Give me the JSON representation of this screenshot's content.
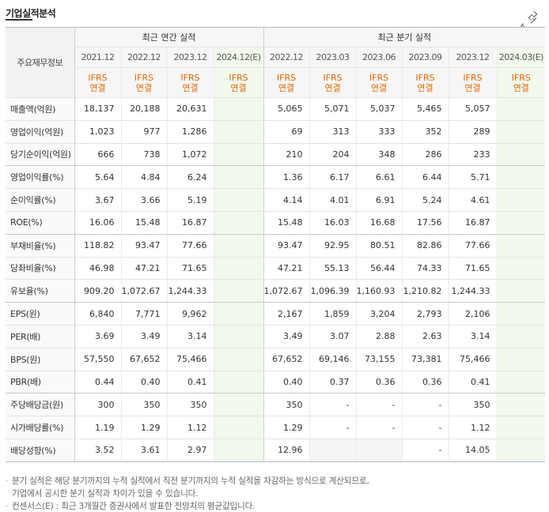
{
  "header": {
    "title": "기업실적분석",
    "more_label": "더보기"
  },
  "table": {
    "row_header_label": "주요재무정보",
    "annual_group_label": "최근 연간 실적",
    "quarter_group_label": "최근 분기 실적",
    "annual_periods": [
      "2021.12",
      "2022.12",
      "2023.12",
      "2024.12(E)"
    ],
    "quarter_periods": [
      "2022.12",
      "2023.03",
      "2023.06",
      "2023.09",
      "2023.12",
      "2024.03(E)"
    ],
    "basis_line1": "IFRS",
    "basis_line2": "연결",
    "rows": [
      {
        "label": "매출액(억원)",
        "annual": [
          "18,137",
          "20,188",
          "20,631",
          ""
        ],
        "quarter": [
          "5,065",
          "5,071",
          "5,037",
          "5,465",
          "5,057",
          ""
        ]
      },
      {
        "label": "영업이익(억원)",
        "annual": [
          "1,023",
          "977",
          "1,286",
          ""
        ],
        "quarter": [
          "69",
          "313",
          "333",
          "352",
          "289",
          ""
        ]
      },
      {
        "label": "당기순이익(억원)",
        "annual": [
          "666",
          "738",
          "1,072",
          ""
        ],
        "quarter": [
          "210",
          "204",
          "348",
          "286",
          "233",
          ""
        ]
      },
      {
        "label": "영업이익률(%)",
        "annual": [
          "5.64",
          "4.84",
          "6.24",
          ""
        ],
        "quarter": [
          "1.36",
          "6.17",
          "6.61",
          "6.44",
          "5.71",
          ""
        ]
      },
      {
        "label": "순이익률(%)",
        "annual": [
          "3.67",
          "3.66",
          "5.19",
          ""
        ],
        "quarter": [
          "4.14",
          "4.01",
          "6.91",
          "5.24",
          "4.61",
          ""
        ]
      },
      {
        "label": "ROE(%)",
        "annual": [
          "16.06",
          "15.48",
          "16.87",
          ""
        ],
        "quarter": [
          "15.48",
          "16.03",
          "16.68",
          "17.56",
          "16.87",
          ""
        ]
      },
      {
        "label": "부채비율(%)",
        "annual": [
          "118.82",
          "93.47",
          "77.66",
          ""
        ],
        "quarter": [
          "93.47",
          "92.95",
          "80.51",
          "82.86",
          "77.66",
          ""
        ]
      },
      {
        "label": "당좌비율(%)",
        "annual": [
          "46.98",
          "47.21",
          "71.65",
          ""
        ],
        "quarter": [
          "47.21",
          "55.13",
          "56.44",
          "74.33",
          "71.65",
          ""
        ]
      },
      {
        "label": "유보율(%)",
        "annual": [
          "909.20",
          "1,072.67",
          "1,244.33",
          ""
        ],
        "quarter": [
          "1,072.67",
          "1,096.39",
          "1,160.93",
          "1,210.82",
          "1,244.33",
          ""
        ]
      },
      {
        "label": "EPS(원)",
        "annual": [
          "6,840",
          "7,771",
          "9,962",
          ""
        ],
        "quarter": [
          "2,167",
          "1,859",
          "3,204",
          "2,793",
          "2,106",
          ""
        ]
      },
      {
        "label": "PER(배)",
        "annual": [
          "3.69",
          "3.49",
          "3.14",
          ""
        ],
        "quarter": [
          "3.49",
          "3.07",
          "2.88",
          "2.63",
          "3.14",
          ""
        ]
      },
      {
        "label": "BPS(원)",
        "annual": [
          "57,550",
          "67,652",
          "75,466",
          ""
        ],
        "quarter": [
          "67,652",
          "69,146",
          "73,155",
          "73,381",
          "75,466",
          ""
        ]
      },
      {
        "label": "PBR(배)",
        "annual": [
          "0.44",
          "0.40",
          "0.41",
          ""
        ],
        "quarter": [
          "0.40",
          "0.37",
          "0.36",
          "0.36",
          "0.41",
          ""
        ]
      },
      {
        "label": "주당배당금(원)",
        "annual": [
          "300",
          "350",
          "350",
          ""
        ],
        "quarter": [
          "350",
          "-",
          "-",
          "-",
          "350",
          ""
        ]
      },
      {
        "label": "시가배당률(%)",
        "annual": [
          "1.19",
          "1.29",
          "1.12",
          ""
        ],
        "quarter": [
          "1.29",
          "-",
          "-",
          "-",
          "1.12",
          ""
        ]
      },
      {
        "label": "배당성향(%)",
        "annual": [
          "3.52",
          "3.61",
          "2.97",
          ""
        ],
        "quarter": [
          "12.96",
          "",
          "",
          "-",
          "14.05",
          ""
        ]
      }
    ]
  },
  "notes": {
    "line1": "분기 실적은 해당 분기까지의 누적 실적에서 직전 분기까지의 누적 실적을 차감하는 방식으로 계산되므로,",
    "line2": "기업에서 공시한 분기 실적과 차이가 있을 수 있습니다.",
    "line3": "컨센서스(E) : 최근 3개월간 증권사에서 발표한 전망치의 평균값입니다."
  }
}
